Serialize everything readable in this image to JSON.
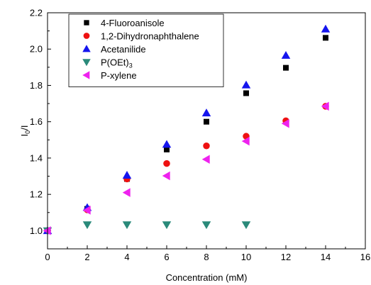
{
  "chart_data": {
    "type": "scatter",
    "xlabel": "Concentration (mM)",
    "ylabel": {
      "main": "I",
      "sub": "0",
      "tail": "/I"
    },
    "xlim": [
      0,
      16
    ],
    "ylim": [
      0.9,
      2.2
    ],
    "xticks": [
      "0",
      "2",
      "4",
      "6",
      "8",
      "10",
      "12",
      "14",
      "16"
    ],
    "yticks": [
      "1.0",
      "1.2",
      "1.4",
      "1.6",
      "1.8",
      "2.0",
      "2.2"
    ],
    "legend_position": "top-left",
    "series": [
      {
        "name": "4-Fluoroanisole",
        "marker": "square",
        "color": "#000000",
        "x": [
          0,
          2,
          4,
          6,
          8,
          10,
          12,
          14
        ],
        "y": [
          1.0,
          1.12,
          1.285,
          1.447,
          1.6,
          1.757,
          1.897,
          2.062
        ]
      },
      {
        "name": "1,2-Dihydronaphthalene",
        "marker": "circle",
        "color": "#ee1111",
        "x": [
          0,
          2,
          4,
          6,
          8,
          10,
          12,
          14
        ],
        "y": [
          1.0,
          1.115,
          1.285,
          1.37,
          1.467,
          1.52,
          1.605,
          1.685
        ]
      },
      {
        "name": "Acetanilide",
        "marker": "triangle-up",
        "color": "#1515ee",
        "x": [
          0,
          2,
          4,
          6,
          8,
          10,
          12,
          14
        ],
        "y": [
          1.0,
          1.127,
          1.305,
          1.475,
          1.648,
          1.802,
          1.965,
          2.11
        ]
      },
      {
        "name": "P(OEt)",
        "name_sub": "3",
        "marker": "triangle-down",
        "color": "#2a8a7a",
        "x": [
          0,
          2,
          4,
          6,
          8,
          10
        ],
        "y": [
          1.0,
          1.033,
          1.033,
          1.033,
          1.033,
          1.033
        ]
      },
      {
        "name": "P-xylene",
        "marker": "triangle-left",
        "color": "#ee22ee",
        "x": [
          0,
          2,
          4,
          6,
          8,
          10,
          12,
          14
        ],
        "y": [
          1.0,
          1.113,
          1.21,
          1.302,
          1.393,
          1.493,
          1.59,
          1.685
        ]
      }
    ]
  }
}
